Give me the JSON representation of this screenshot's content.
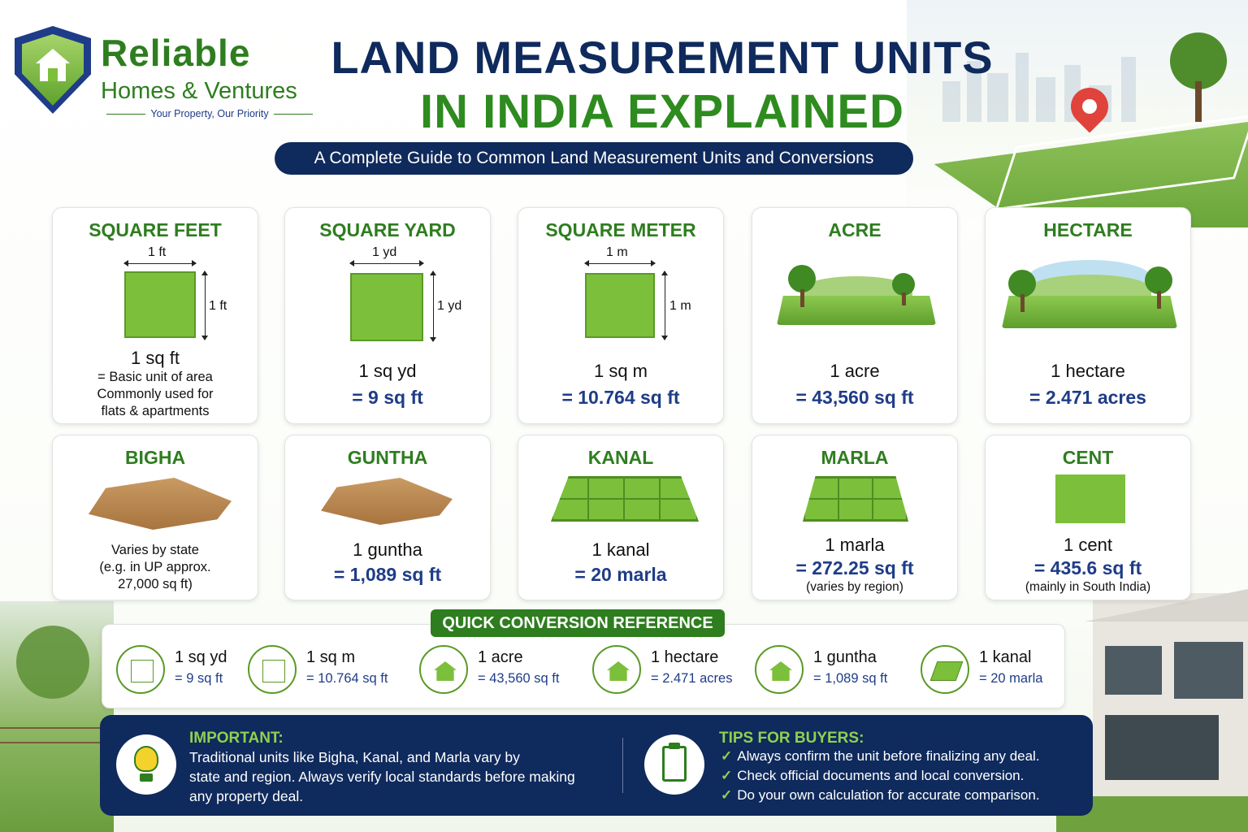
{
  "brand": {
    "name": "Reliable",
    "sub": "Homes & Ventures",
    "tagline": "Your Property, Our Priority"
  },
  "title": {
    "line1": "LAND MEASUREMENT UNITS",
    "line2": "IN INDIA EXPLAINED",
    "subtitle": "A Complete Guide to Common Land Measurement Units and Conversions"
  },
  "cards": {
    "square_feet": {
      "title": "SQUARE FEET",
      "dim_w": "1 ft",
      "dim_h": "1 ft",
      "l1": "1 sq ft",
      "d1": "= Basic unit of area",
      "d2": "Commonly used for",
      "d3": "flats & apartments"
    },
    "square_yard": {
      "title": "SQUARE YARD",
      "dim_w": "1 yd",
      "dim_h": "1 yd",
      "l1": "1 sq yd",
      "l2": "= 9 sq ft"
    },
    "square_meter": {
      "title": "SQUARE METER",
      "dim_w": "1 m",
      "dim_h": "1 m",
      "l1": "1 sq m",
      "l2": "= 10.764 sq ft"
    },
    "acre": {
      "title": "ACRE",
      "l1": "1 acre",
      "l2": "= 43,560 sq ft"
    },
    "hectare": {
      "title": "HECTARE",
      "l1": "1 hectare",
      "l2": "= 2.471 acres"
    },
    "bigha": {
      "title": "BIGHA",
      "d1": "Varies by state",
      "d2": "(e.g. in UP approx.",
      "d3": "27,000 sq ft)"
    },
    "guntha": {
      "title": "GUNTHA",
      "l1": "1 guntha",
      "l2": "= 1,089 sq ft"
    },
    "kanal": {
      "title": "KANAL",
      "l1": "1 kanal",
      "l2": "= 20 marla"
    },
    "marla": {
      "title": "MARLA",
      "l1": "1 marla",
      "l2": "= 272.25 sq ft",
      "note": "(varies by region)"
    },
    "cent": {
      "title": "CENT",
      "l1": "1 cent",
      "l2": "= 435.6 sq ft",
      "note": "(mainly in South India)"
    }
  },
  "quick_conversion": {
    "title": "QUICK CONVERSION REFERENCE",
    "items": [
      {
        "l1": "1 sq yd",
        "l2": "= 9 sq ft",
        "icon": "square-yard-icon"
      },
      {
        "l1": "1 sq m",
        "l2": "= 10.764 sq ft",
        "icon": "square-meter-icon"
      },
      {
        "l1": "1 acre",
        "l2": "= 43,560 sq ft",
        "icon": "acre-house-icon"
      },
      {
        "l1": "1 hectare",
        "l2": "= 2.471 acres",
        "icon": "hectare-house-icon"
      },
      {
        "l1": "1 guntha",
        "l2": "= 1,089 sq ft",
        "icon": "guntha-house-icon"
      },
      {
        "l1": "1 kanal",
        "l2": "= 20 marla",
        "icon": "kanal-plot-icon"
      }
    ]
  },
  "important": {
    "heading": "IMPORTANT:",
    "line1": "Traditional units like Bigha, Kanal, and Marla vary by",
    "line2": "state and region. Always verify local standards before making",
    "line3": "any property deal."
  },
  "tips": {
    "heading": "TIPS FOR BUYERS:",
    "items": [
      "Always confirm the unit before finalizing any deal.",
      "Check official documents and local conversion.",
      "Do your own calculation for accurate comparison."
    ]
  },
  "colors": {
    "navy": "#0f2a5c",
    "green": "#2e7d1f",
    "grass": "#7cbf3a",
    "accent_blue": "#1f3c88"
  }
}
